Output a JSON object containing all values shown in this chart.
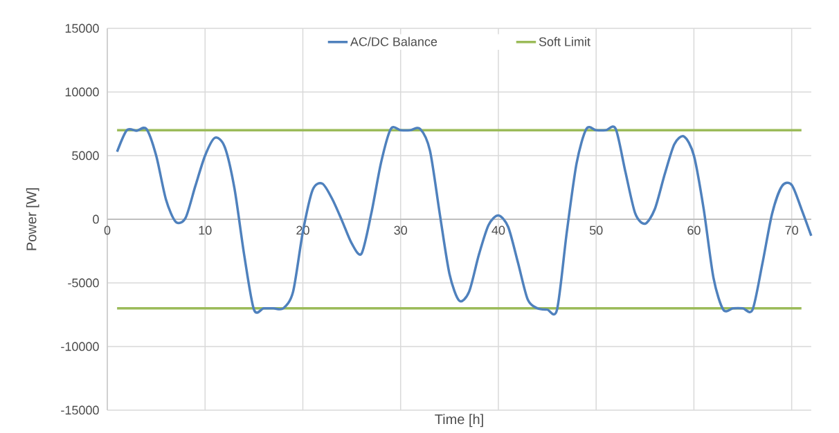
{
  "chart_data": {
    "type": "line",
    "xlabel": "Time [h]",
    "ylabel": "Power [W]",
    "xlim": [
      0,
      72
    ],
    "xticks": [
      0,
      10,
      20,
      30,
      40,
      50,
      60,
      70
    ],
    "ylim": [
      -15000,
      15000
    ],
    "yticks": [
      -15000,
      -10000,
      -5000,
      0,
      5000,
      10000,
      15000
    ],
    "grid": true,
    "legend": "top",
    "series": [
      {
        "name": "AC/DC Balance",
        "color": "#4f81bd",
        "x": [
          1,
          2,
          3,
          4,
          5,
          6,
          7,
          8,
          9,
          10,
          11,
          12,
          13,
          14,
          15,
          16,
          17,
          18,
          19,
          20,
          21,
          22,
          23,
          24,
          25,
          26,
          27,
          28,
          29,
          30,
          31,
          32,
          33,
          34,
          35,
          36,
          37,
          38,
          39,
          40,
          41,
          42,
          43,
          44,
          45,
          46,
          47,
          48,
          49,
          50,
          51,
          52,
          53,
          54,
          55,
          56,
          57,
          58,
          59,
          60,
          61,
          62,
          63,
          64,
          65,
          66,
          67,
          68,
          69,
          70,
          71,
          72
        ],
        "values": [
          5300,
          7000,
          6950,
          7100,
          5000,
          1550,
          -200,
          100,
          2600,
          5000,
          6400,
          5700,
          2450,
          -2800,
          -7100,
          -7000,
          -7000,
          -7000,
          -5700,
          -1000,
          2300,
          2800,
          1600,
          -100,
          -1900,
          -2700,
          450,
          4450,
          7100,
          7000,
          7000,
          7100,
          5400,
          450,
          -4300,
          -6400,
          -5700,
          -2800,
          -450,
          300,
          -600,
          -3400,
          -6300,
          -7000,
          -7100,
          -7100,
          -1000,
          4400,
          7100,
          7000,
          7000,
          7100,
          3700,
          450,
          -350,
          800,
          3500,
          5900,
          6500,
          5000,
          800,
          -4600,
          -7100,
          -7000,
          -7000,
          -7100,
          -3500,
          450,
          2600,
          2700,
          800,
          -1300
        ]
      },
      {
        "name": "Soft Limit",
        "color": "#9bbb59",
        "x": [
          1,
          71
        ],
        "values": [
          7000,
          7000
        ]
      },
      {
        "color": "#9bbb59",
        "x": [
          1,
          71
        ],
        "values": [
          -7000,
          -7000
        ]
      }
    ]
  }
}
